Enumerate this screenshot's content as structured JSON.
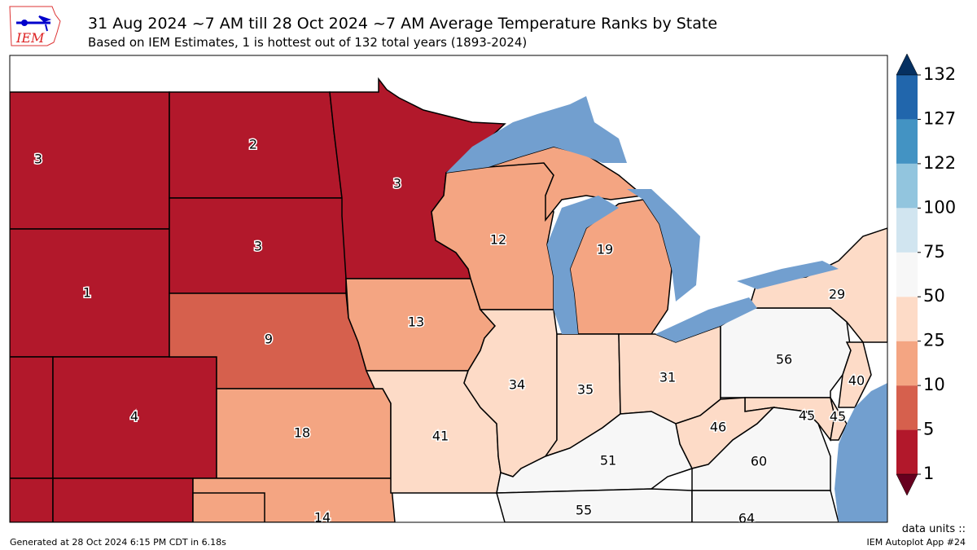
{
  "header": {
    "title": "31 Aug 2024 ~7 AM till 28 Oct 2024 ~7 AM Average Temperature Ranks by State",
    "subtitle": "Based on IEM Estimates, 1 is hottest out of 132 total years (1893-2024)",
    "logo_text": "IEM"
  },
  "footer": {
    "generated": "Generated at 28 Oct 2024 6:15 PM CDT in 6.18s",
    "units": "data units ::",
    "app": "IEM Autoplot App #24"
  },
  "colors": {
    "water": "#729fcf",
    "bins": [
      "#b2182b",
      "#d6604d",
      "#f4a582",
      "#fddbc7",
      "#f7f7f7",
      "#d1e5f0",
      "#92c5de",
      "#4393c3",
      "#2166ac"
    ],
    "under": "#67001f",
    "over": "#053061"
  },
  "colorbar": {
    "levels": [
      "1",
      "5",
      "10",
      "25",
      "50",
      "75",
      "100",
      "122",
      "127",
      "132"
    ]
  },
  "states": {
    "MT": "3",
    "ND": "2",
    "MN": "3",
    "SD": "3",
    "WY": "1",
    "NE": "9",
    "CO": "4",
    "IA": "13",
    "WI": "12",
    "MI": "19",
    "KS": "18",
    "MO": "41",
    "IL": "34",
    "IN": "35",
    "OH": "31",
    "KY": "51",
    "TN": "55",
    "WV": "46",
    "VA": "60",
    "PA": "56",
    "NY": "29",
    "NJ": "40",
    "MD": "45",
    "DE": "45",
    "OK": "14",
    "NC": "64"
  }
}
